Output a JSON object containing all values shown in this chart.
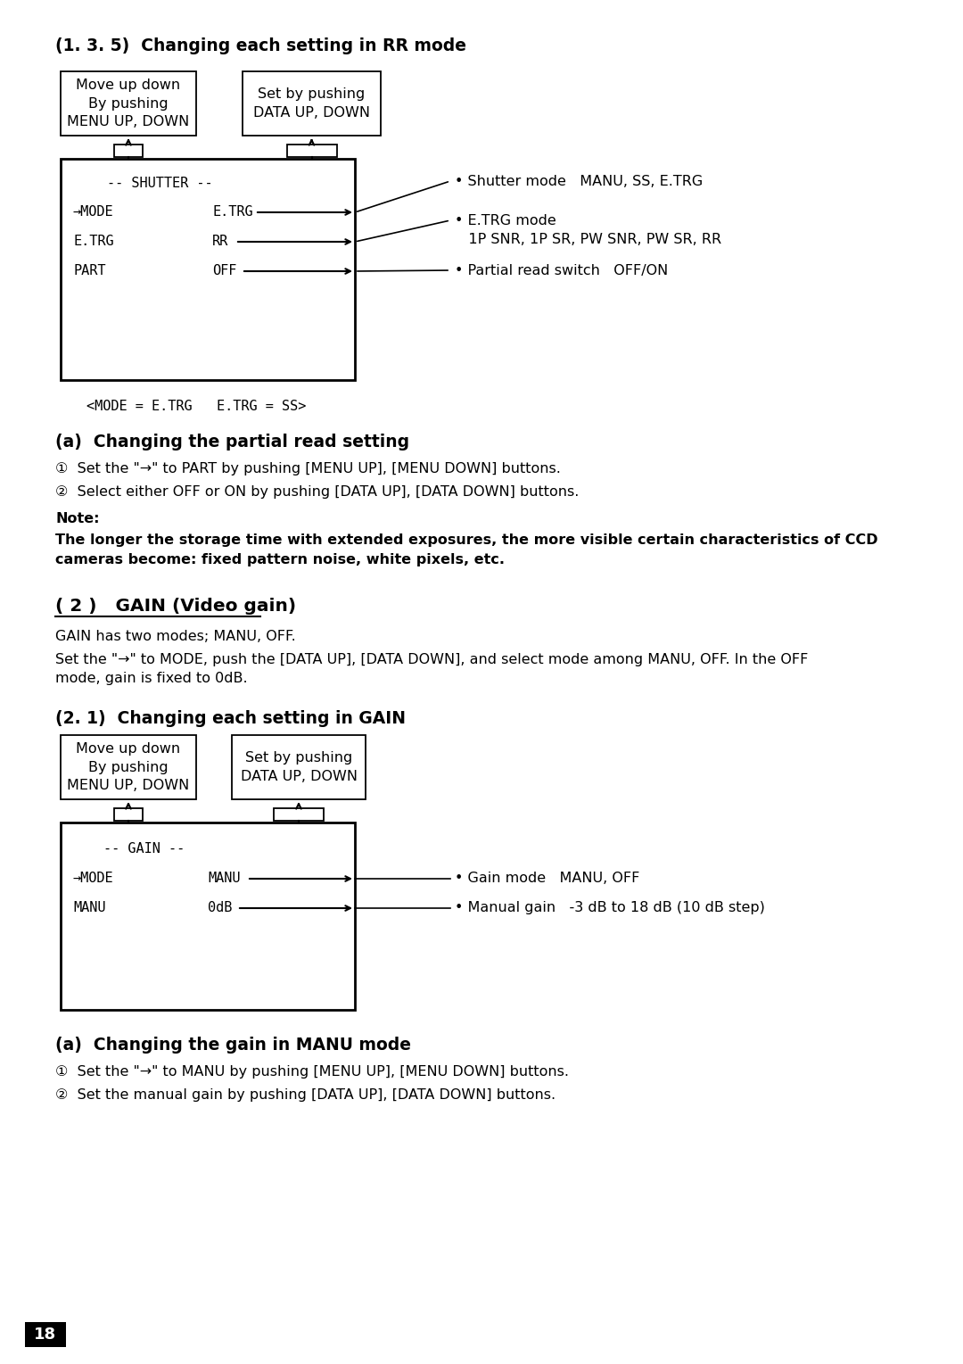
{
  "bg_color": "#ffffff",
  "page_number": "18",
  "section1_title": "(1. 3. 5)  Changing each setting in RR mode",
  "box1_text": "Move up down\nBy pushing\nMENU UP, DOWN",
  "box2_text": "Set by pushing\nDATA UP, DOWN",
  "shutter_menu_text": "-- SHUTTER --",
  "shutter_menu_items": [
    "→MODE",
    "E.TRG",
    "PART"
  ],
  "shutter_values": [
    "E.TRG",
    "RR",
    "OFF"
  ],
  "shutter_note1": "• Shutter mode   MANU, SS, E.TRG",
  "shutter_note2": "• E.TRG mode\n   1P SNR, 1P SR, PW SNR, PW SR, RR",
  "shutter_note3": "• Partial read switch   OFF/ON",
  "mode_caption": "<MODE = E.TRG   E.TRG = SS>",
  "section_a1_title": "(a)  Changing the partial read setting",
  "step1_text": "①  Set the \"→\" to PART by pushing [MENU UP], [MENU DOWN] buttons.",
  "step2_text": "②  Select either OFF or ON by pushing [DATA UP], [DATA DOWN] buttons.",
  "note_label": "Note:",
  "note_bold_text": "The longer the storage time with extended exposures, the more visible certain characteristics of CCD\ncameras become: fixed pattern noise, white pixels, etc.",
  "section2_title": "( 2 )   GAIN (Video gain)",
  "gain_desc1": "GAIN has two modes; MANU, OFF.",
  "gain_desc2": "Set the \"→\" to MODE, push the [DATA UP], [DATA DOWN], and select mode among MANU, OFF. In the OFF\nmode, gain is fixed to 0dB.",
  "section21_title": "(2. 1)  Changing each setting in GAIN",
  "gain_box1_text": "Move up down\nBy pushing\nMENU UP, DOWN",
  "gain_box2_text": "Set by pushing\nDATA UP, DOWN",
  "gain_menu_text": "-- GAIN --",
  "gain_menu_items": [
    "→MODE",
    "MANU"
  ],
  "gain_values": [
    "MANU",
    "0dB"
  ],
  "gain_note1": "• Gain mode   MANU, OFF",
  "gain_note2": "• Manual gain   -3 dB to 18 dB (10 dB step)",
  "section_a2_title": "(a)  Changing the gain in MANU mode",
  "gain_step1": "①  Set the \"→\" to MANU by pushing [MENU UP], [MENU DOWN] buttons.",
  "gain_step2": "②  Set the manual gain by pushing [DATA UP], [DATA DOWN] buttons."
}
